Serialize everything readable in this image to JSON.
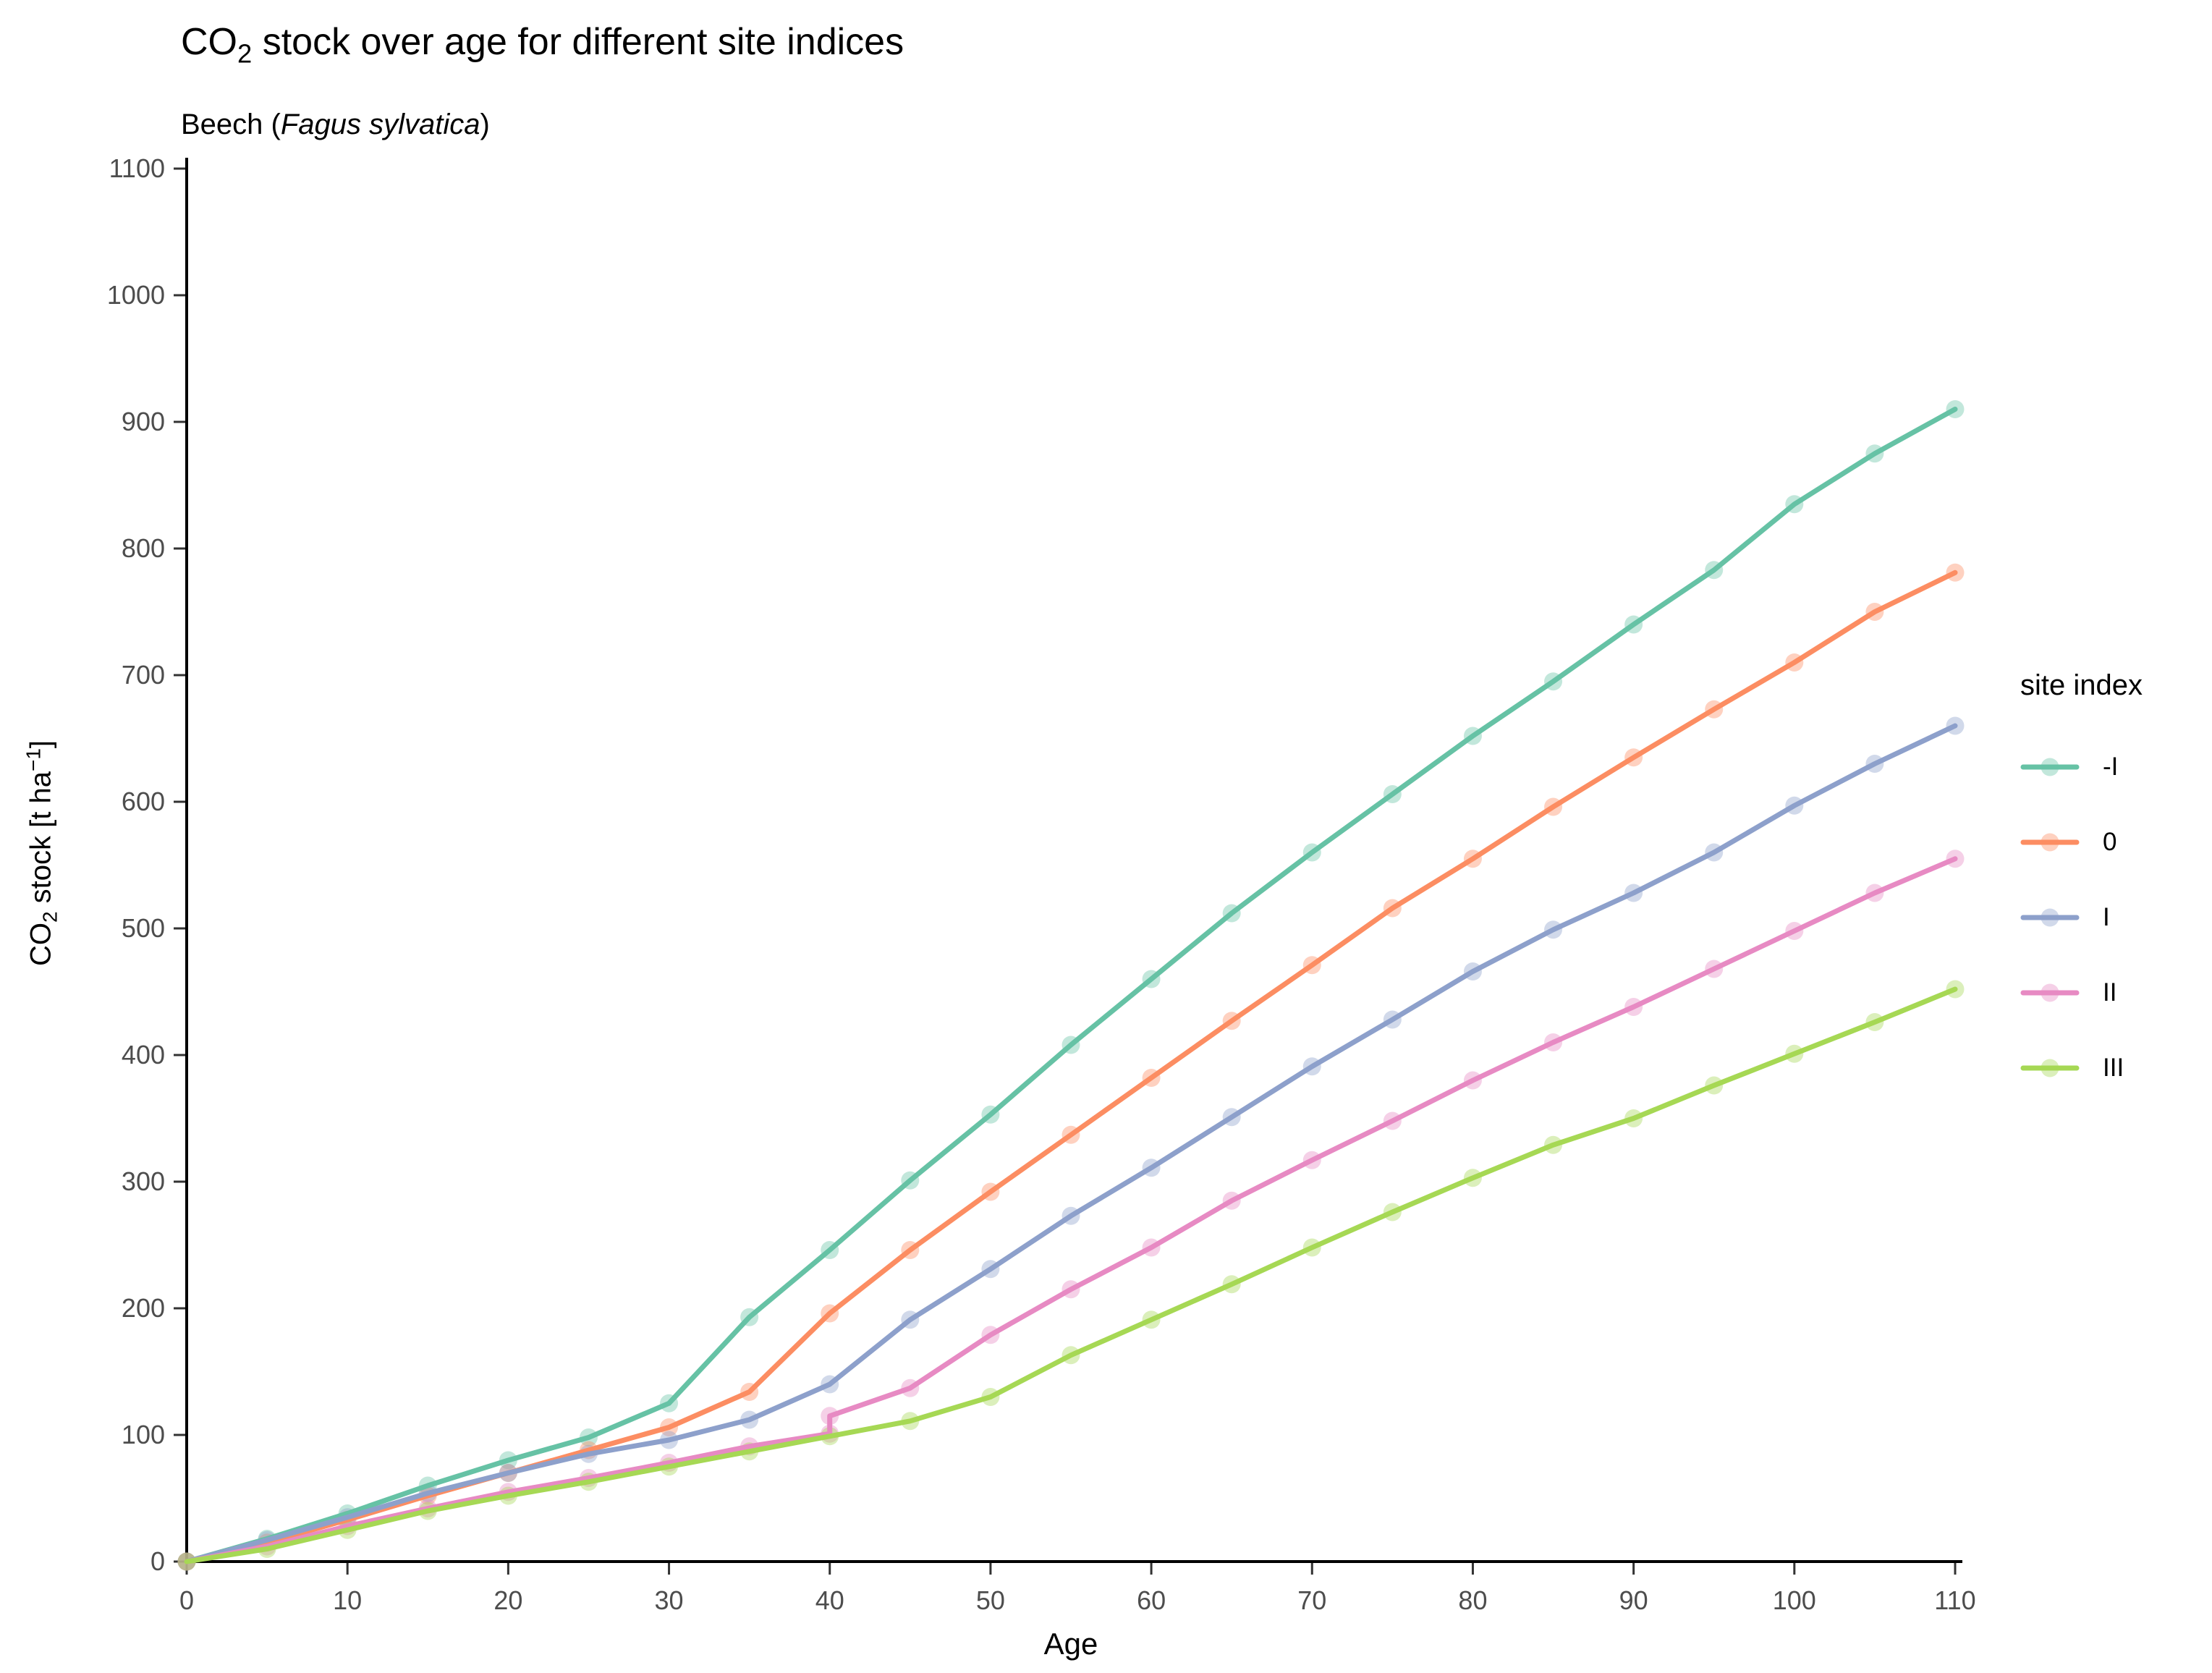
{
  "title": {
    "prefix": "CO",
    "sub": "2",
    "rest": " stock over age for different site indices"
  },
  "subtitle": {
    "prefix": "Beech (",
    "italic": "Fagus sylvatica",
    "suffix": ")"
  },
  "axes": {
    "x": {
      "label": "Age"
    },
    "y": {
      "label_prefix": "CO",
      "label_sub": "2",
      "label_mid": " stock [t ha",
      "label_sup": "−1",
      "label_suffix": "]"
    }
  },
  "legend": {
    "title": "site index",
    "entries": [
      {
        "label": "-I",
        "color": "#66C2A5"
      },
      {
        "label": "0",
        "color": "#FC8D62"
      },
      {
        "label": "I",
        "color": "#8DA0CB"
      },
      {
        "label": "II",
        "color": "#E78AC3"
      },
      {
        "label": "III",
        "color": "#A6D854"
      }
    ]
  },
  "style": {
    "axis_color": "#000000",
    "tick_color": "#333333",
    "tick_label_color": "#4d4d4d",
    "background": "#ffffff"
  },
  "chart_data": {
    "type": "line",
    "title": "CO2 stock over age for different site indices",
    "subtitle": "Beech (Fagus sylvatica)",
    "xlabel": "Age",
    "ylabel": "CO2 stock [t ha^-1]",
    "xlim": [
      0,
      110
    ],
    "ylim": [
      0,
      1100
    ],
    "x_ticks": [
      0,
      10,
      20,
      30,
      40,
      50,
      60,
      70,
      80,
      90,
      100,
      110
    ],
    "y_ticks": [
      0,
      100,
      200,
      300,
      400,
      500,
      600,
      700,
      800,
      900,
      1000,
      1100
    ],
    "grid": false,
    "legend_title": "site index",
    "legend_position": "right",
    "marker_every_years": 5,
    "series": [
      {
        "name": "-I",
        "color": "#66C2A5",
        "points": [
          [
            0,
            0
          ],
          [
            5,
            18
          ],
          [
            10,
            38
          ],
          [
            15,
            60
          ],
          [
            20,
            80
          ],
          [
            25,
            98
          ],
          [
            30,
            125
          ],
          [
            35,
            193
          ],
          [
            40,
            246
          ],
          [
            45,
            301
          ],
          [
            50,
            353
          ],
          [
            55,
            408
          ],
          [
            60,
            460
          ],
          [
            65,
            512
          ],
          [
            70,
            560
          ],
          [
            75,
            606
          ],
          [
            80,
            652
          ],
          [
            85,
            695
          ],
          [
            90,
            740
          ],
          [
            95,
            783
          ],
          [
            100,
            835
          ],
          [
            105,
            875
          ],
          [
            110,
            910
          ]
        ]
      },
      {
        "name": "0",
        "color": "#FC8D62",
        "points": [
          [
            0,
            0
          ],
          [
            5,
            15
          ],
          [
            10,
            33
          ],
          [
            15,
            52
          ],
          [
            20,
            70
          ],
          [
            25,
            88
          ],
          [
            30,
            106
          ],
          [
            35,
            134
          ],
          [
            40,
            196
          ],
          [
            45,
            246
          ],
          [
            50,
            292
          ],
          [
            55,
            337
          ],
          [
            60,
            382
          ],
          [
            65,
            427
          ],
          [
            70,
            471
          ],
          [
            75,
            516
          ],
          [
            80,
            555
          ],
          [
            85,
            596
          ],
          [
            90,
            635
          ],
          [
            95,
            673
          ],
          [
            100,
            710
          ],
          [
            105,
            750
          ],
          [
            110,
            781
          ]
        ]
      },
      {
        "name": "I",
        "color": "#8DA0CB",
        "points": [
          [
            0,
            0
          ],
          [
            5,
            17
          ],
          [
            10,
            35
          ],
          [
            15,
            54
          ],
          [
            20,
            70
          ],
          [
            25,
            85
          ],
          [
            30,
            96
          ],
          [
            35,
            112
          ],
          [
            40,
            140
          ],
          [
            45,
            191
          ],
          [
            50,
            231
          ],
          [
            55,
            273
          ],
          [
            60,
            311
          ],
          [
            65,
            351
          ],
          [
            70,
            391
          ],
          [
            75,
            428
          ],
          [
            80,
            466
          ],
          [
            85,
            499
          ],
          [
            90,
            528
          ],
          [
            95,
            560
          ],
          [
            100,
            597
          ],
          [
            105,
            630
          ],
          [
            110,
            660
          ]
        ]
      },
      {
        "name": "II",
        "color": "#E78AC3",
        "points": [
          [
            0,
            0
          ],
          [
            5,
            12
          ],
          [
            10,
            28
          ],
          [
            15,
            42
          ],
          [
            20,
            55
          ],
          [
            25,
            66
          ],
          [
            30,
            78
          ],
          [
            35,
            91
          ],
          [
            40,
            101
          ],
          [
            40,
            115
          ],
          [
            45,
            137
          ],
          [
            50,
            179
          ],
          [
            55,
            215
          ],
          [
            60,
            248
          ],
          [
            65,
            285
          ],
          [
            70,
            317
          ],
          [
            75,
            348
          ],
          [
            80,
            380
          ],
          [
            85,
            410
          ],
          [
            90,
            438
          ],
          [
            95,
            468
          ],
          [
            100,
            498
          ],
          [
            105,
            528
          ],
          [
            110,
            555
          ]
        ]
      },
      {
        "name": "III",
        "color": "#A6D854",
        "points": [
          [
            0,
            0
          ],
          [
            5,
            10
          ],
          [
            10,
            25
          ],
          [
            15,
            40
          ],
          [
            20,
            52
          ],
          [
            25,
            63
          ],
          [
            30,
            75
          ],
          [
            35,
            87
          ],
          [
            40,
            99
          ],
          [
            45,
            111
          ],
          [
            50,
            130
          ],
          [
            55,
            163
          ],
          [
            60,
            191
          ],
          [
            65,
            219
          ],
          [
            70,
            248
          ],
          [
            75,
            276
          ],
          [
            80,
            303
          ],
          [
            85,
            329
          ],
          [
            90,
            350
          ],
          [
            95,
            376
          ],
          [
            100,
            401
          ],
          [
            105,
            426
          ],
          [
            110,
            452
          ]
        ]
      }
    ]
  }
}
